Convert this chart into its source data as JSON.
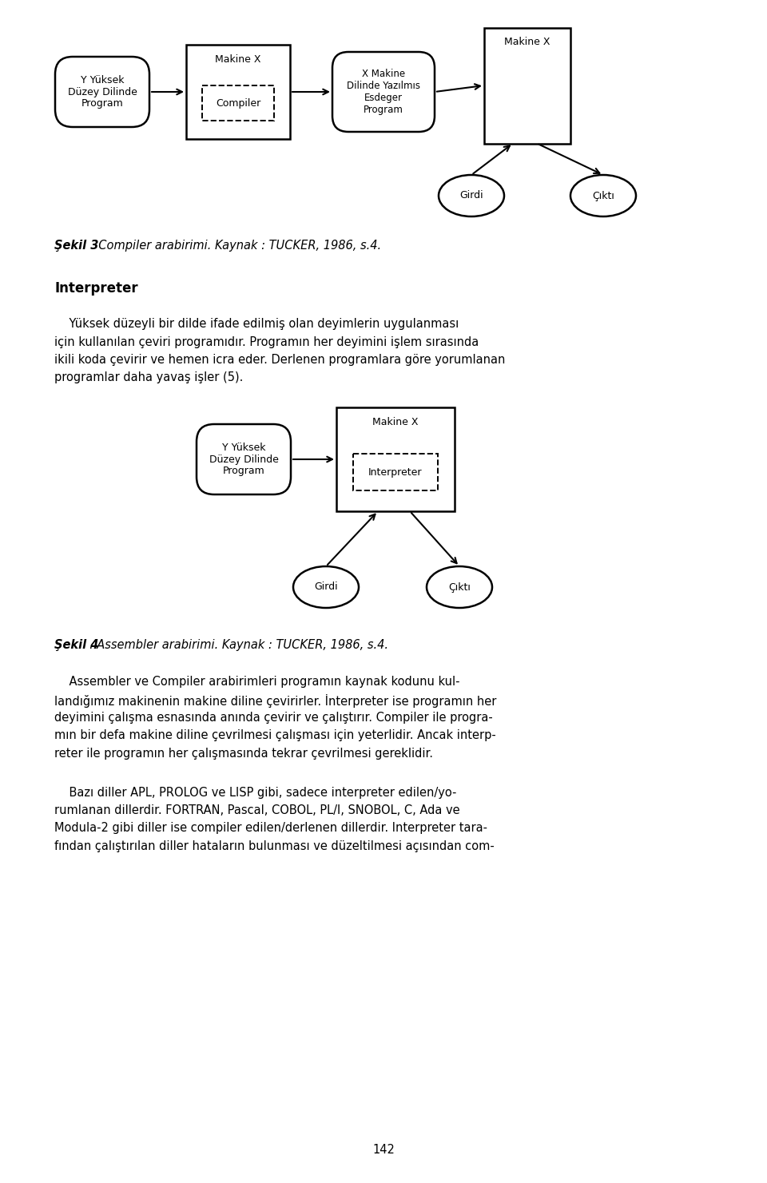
{
  "bg_color": "#ffffff",
  "page_number": "142",
  "caption1_bold": "Şekil 3",
  "caption1_rest": ". Compiler arabirimi. Kaynak : TUCKER, 1986, s.4.",
  "section_title": "Interpreter",
  "para1_lines": [
    "    Yüksek düzeyli bir dilde ifade edilmiş olan deyimlerin uygulanması",
    "için kullanılan çeviri programıdır. Programın her deyimini işlem sırasında",
    "ikili koda çevirir ve hemen icra eder. Derlenen programlara göre yorumlanan",
    "programlar daha yavaş işler (5)."
  ],
  "caption2_bold": "Şekil 4",
  "caption2_rest": ". Assembler arabirimi. Kaynak : TUCKER, 1986, s.4.",
  "para2_lines": [
    "    Assembler ve Compiler arabirimleri programın kaynak kodunu kul-",
    "landığımız makinenin makine diline çevirirler. İnterpreter ise programın her",
    "deyimini çalışma esnasında anında çevirir ve çalıştırır. Compiler ile progra-",
    "mın bir defa makine diline çevrilmesi çalışması için yeterlidir. Ancak interp-",
    "reter ile programın her çalışmasında tekrar çevrilmesi gereklidir."
  ],
  "para3_lines": [
    "    Bazı diller APL, PROLOG ve LISP gibi, sadece interpreter edilen/yo-",
    "rumlanan dillerdir. FORTRAN, Pascal, COBOL, PL/I, SNOBOL, C, Ada ve",
    "Modula-2 gibi diller ise compiler edilen/derlenen dillerdir. Interpreter tara-",
    "fından çalıştırılan diller hataların bulunması ve düzeltilmesi açısından com-"
  ],
  "d1_n1_label": "Y Yüksek\nDüzey Dilinde\nProgram",
  "d1_n2_top": "Makine X",
  "d1_n2_inner": "Compiler",
  "d1_n3_label": "X Makine\nDilinde Yazılmıs\nEsdeger\nProgram",
  "d1_n4_label": "Makine X",
  "d1_girdi": "Girdi",
  "d1_cikti": "Çıktı",
  "d2_n1_label": "Y Yüksek\nDüzey Dilinde\nProgram",
  "d2_n2_top": "Makine X",
  "d2_n2_inner": "Interpreter",
  "d2_girdi": "Girdi",
  "d2_cikti": "Çıktı"
}
